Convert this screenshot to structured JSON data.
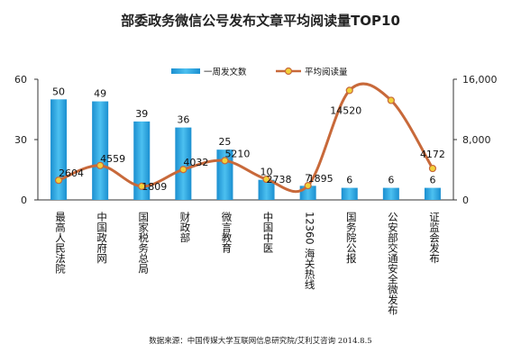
{
  "chart_data": {
    "type": "bar",
    "title": "部委政务微信公号发布文章平均阅读量TOP10",
    "categories": [
      "最高人民法院",
      "中国政府网",
      "国家税务总局",
      "财政部",
      "微言教育",
      "中国中医",
      "12360 海关热线",
      "国务院公报",
      "公安部交通安全微发布",
      "证监会发布"
    ],
    "series": [
      {
        "name": "一周发文数",
        "type": "bar",
        "axis": "left",
        "color": "#2aa6e0",
        "values": [
          50,
          49,
          39,
          36,
          25,
          10,
          7,
          6,
          6,
          6
        ]
      },
      {
        "name": "平均阅读量",
        "type": "line",
        "axis": "right",
        "color": "#c8693a",
        "marker_color": "#f2d23a",
        "values": [
          2604,
          4559,
          1809,
          4032,
          5210,
          2738,
          1895,
          14520,
          13200,
          4172
        ],
        "labels": [
          "2604",
          "4559",
          "1809",
          "4032",
          "5210",
          "2738",
          "1895",
          "14520",
          "",
          "4172"
        ]
      }
    ],
    "y_left": {
      "ylim": [
        0,
        60
      ],
      "ticks": [
        "0",
        "30",
        "60"
      ]
    },
    "y_right": {
      "ylim": [
        0,
        16000
      ],
      "ticks": [
        "0",
        "8,000",
        "16,000"
      ]
    },
    "legend_position": "top-center",
    "grid": false
  },
  "source": "数据来源：中国传媒大学互联网信息研究院/艾利艾咨询 2014.8.5"
}
